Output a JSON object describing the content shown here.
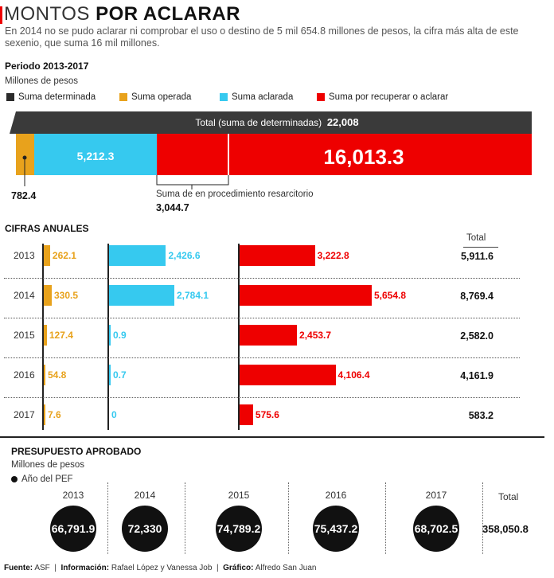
{
  "title": {
    "light": "MONTOS ",
    "bold": "POR ACLARAR"
  },
  "subtitle": "En 2014 no se pudo aclarar ni comprobar el uso o destino de 5 mil 654.8 millones de pesos, la cifra más alta de este sexenio, que suma 16 mil millones.",
  "period": "Periodo 2013-2017",
  "units": "Millones de pesos",
  "colors": {
    "dark": "#3a3a3a",
    "orange": "#e8a21c",
    "cyan": "#36c9ef",
    "red": "#ee0000"
  },
  "legend": [
    {
      "label": "Suma determinada",
      "color": "#2b2b2b"
    },
    {
      "label": "Suma operada",
      "color": "#e8a21c"
    },
    {
      "label": "Suma aclarada",
      "color": "#36c9ef"
    },
    {
      "label": "Suma por recuperar o aclarar",
      "color": "#ee0000"
    }
  ],
  "summary": {
    "total_label": "Total (suma de determinadas)",
    "total_value": "22,008",
    "operada": "782.4",
    "aclarada": "5,212.3",
    "por_aclarar": "16,013.3",
    "resarcitorio_label": "Suma de en procedimiento resarcitorio",
    "resarcitorio_value": "3,044.7"
  },
  "annual": {
    "header": "CIFRAS ANUALES",
    "total_header": "Total"
  },
  "budget": {
    "header": "PRESUPUESTO APROBADO",
    "units": "Millones de pesos",
    "legend": "Año del PEF",
    "total_header": "Total",
    "total_value": "358,050.8"
  },
  "footer": {
    "fuente_label": "Fuente:",
    "fuente": "ASF",
    "info_label": "Información:",
    "info": "Rafael López y Vanessa Job",
    "graf_label": "Gráfico:",
    "graf": "Alfredo San Juan"
  },
  "chart_data": [
    {
      "type": "bar",
      "title": "Periodo 2013-2017",
      "series": [
        {
          "name": "Suma operada",
          "values": [
            782.4
          ]
        },
        {
          "name": "Suma aclarada",
          "values": [
            5212.3
          ]
        },
        {
          "name": "Suma por recuperar o aclarar",
          "values": [
            16013.3
          ]
        }
      ],
      "total": 22008,
      "annotations": [
        {
          "label": "Suma de en procedimiento resarcitorio",
          "value": 3044.7
        }
      ]
    },
    {
      "type": "bar",
      "title": "CIFRAS ANUALES",
      "categories": [
        "2013",
        "2014",
        "2015",
        "2016",
        "2017"
      ],
      "series": [
        {
          "name": "Suma operada",
          "values": [
            262.1,
            330.5,
            127.4,
            54.8,
            7.6
          ],
          "labels": [
            "262.1",
            "330.5",
            "127.4",
            "54.8",
            "7.6"
          ]
        },
        {
          "name": "Suma aclarada",
          "values": [
            2426.6,
            2784.1,
            0.9,
            0.7,
            0
          ],
          "labels": [
            "2,426.6",
            "2,784.1",
            "0.9",
            "0.7",
            "0"
          ]
        },
        {
          "name": "Suma por recuperar o aclarar",
          "values": [
            3222.8,
            5654.8,
            2453.7,
            4106.4,
            575.6
          ],
          "labels": [
            "3,222.8",
            "5,654.8",
            "2,453.7",
            "4,106.4",
            "575.6"
          ]
        }
      ],
      "totals": [
        "5,911.6",
        "8,769.4",
        "2,582.0",
        "4,161.9",
        "583.2"
      ]
    },
    {
      "type": "table",
      "title": "PRESUPUESTO APROBADO",
      "categories": [
        "2013",
        "2014",
        "2015",
        "2016",
        "2017"
      ],
      "values": [
        66791.9,
        72330,
        74789.2,
        75437.2,
        68702.5
      ],
      "labels": [
        "66,791.9",
        "72,330",
        "74,789.2",
        "75,437.2",
        "68,702.5"
      ],
      "total": "358,050.8"
    }
  ]
}
